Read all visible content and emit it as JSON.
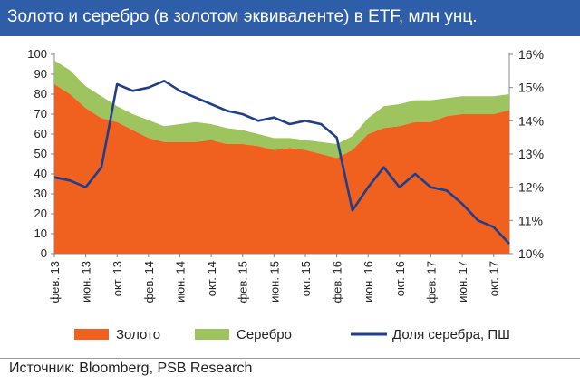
{
  "header": {
    "title": "Золото и серебро (в золотом эквиваленте) в ETF, млн унц."
  },
  "footer": {
    "source": "Источник: Bloomberg, PSB Research"
  },
  "colors": {
    "title_bg": "#2E5EA8",
    "gold": "#F0601F",
    "silver": "#9DC45F",
    "share": "#1F3E8C"
  },
  "chart_data": {
    "type": "area",
    "x_unit": "month",
    "x_start": "2013-02",
    "x": [
      "2013-02",
      "2013-04",
      "2013-06",
      "2013-08",
      "2013-10",
      "2013-12",
      "2014-02",
      "2014-04",
      "2014-06",
      "2014-08",
      "2014-10",
      "2014-12",
      "2015-02",
      "2015-04",
      "2015-06",
      "2015-08",
      "2015-10",
      "2015-12",
      "2016-02",
      "2016-04",
      "2016-06",
      "2016-08",
      "2016-10",
      "2016-12",
      "2017-02",
      "2017-04",
      "2017-06",
      "2017-08",
      "2017-10",
      "2017-12"
    ],
    "series": [
      {
        "name": "Золото",
        "kind": "area",
        "axis": "left",
        "values": [
          85,
          80,
          73,
          68,
          66,
          62,
          58,
          56,
          56,
          56,
          57,
          55,
          55,
          54,
          52,
          53,
          52,
          50,
          48,
          52,
          60,
          63,
          64,
          66,
          66,
          69,
          70,
          70,
          70,
          72
        ]
      },
      {
        "name": "Серебро",
        "kind": "area_stacked_total",
        "axis": "left",
        "values": [
          97,
          92,
          84,
          79,
          74,
          70,
          67,
          64,
          65,
          66,
          65,
          63,
          62,
          60,
          58,
          58,
          57,
          56,
          55,
          59,
          68,
          74,
          75,
          77,
          77,
          78,
          79,
          79,
          79,
          80
        ]
      },
      {
        "name": "Доля серебра, ПШ",
        "kind": "line",
        "axis": "right",
        "values": [
          12.3,
          12.2,
          12.0,
          12.6,
          15.1,
          14.9,
          15.0,
          15.2,
          14.9,
          14.7,
          14.5,
          14.3,
          14.2,
          14.0,
          14.1,
          13.9,
          14.0,
          13.9,
          13.5,
          11.3,
          12.0,
          12.6,
          12.0,
          12.4,
          12.0,
          11.9,
          11.5,
          11.0,
          10.8,
          10.3
        ]
      }
    ],
    "x_tick_labels": [
      "фев. 13",
      "июн. 13",
      "окт. 13",
      "фев. 14",
      "июн. 14",
      "окт. 14",
      "фев. 15",
      "июн. 15",
      "окт. 15",
      "фев. 16",
      "июн. 16",
      "окт. 16",
      "фев. 17",
      "июн. 17",
      "окт. 17"
    ],
    "y_left": {
      "min": 0,
      "max": 100,
      "ticks": [
        "0",
        "10",
        "20",
        "30",
        "40",
        "50",
        "60",
        "70",
        "80",
        "90",
        "100"
      ]
    },
    "y_right": {
      "min": 10,
      "max": 16,
      "unit": "%",
      "ticks": [
        "10%",
        "11%",
        "12%",
        "13%",
        "14%",
        "15%",
        "16%"
      ]
    },
    "legend": {
      "position": "bottom",
      "items": [
        "Золото",
        "Серебро",
        "Доля серебра, ПШ"
      ]
    },
    "grid": false
  }
}
